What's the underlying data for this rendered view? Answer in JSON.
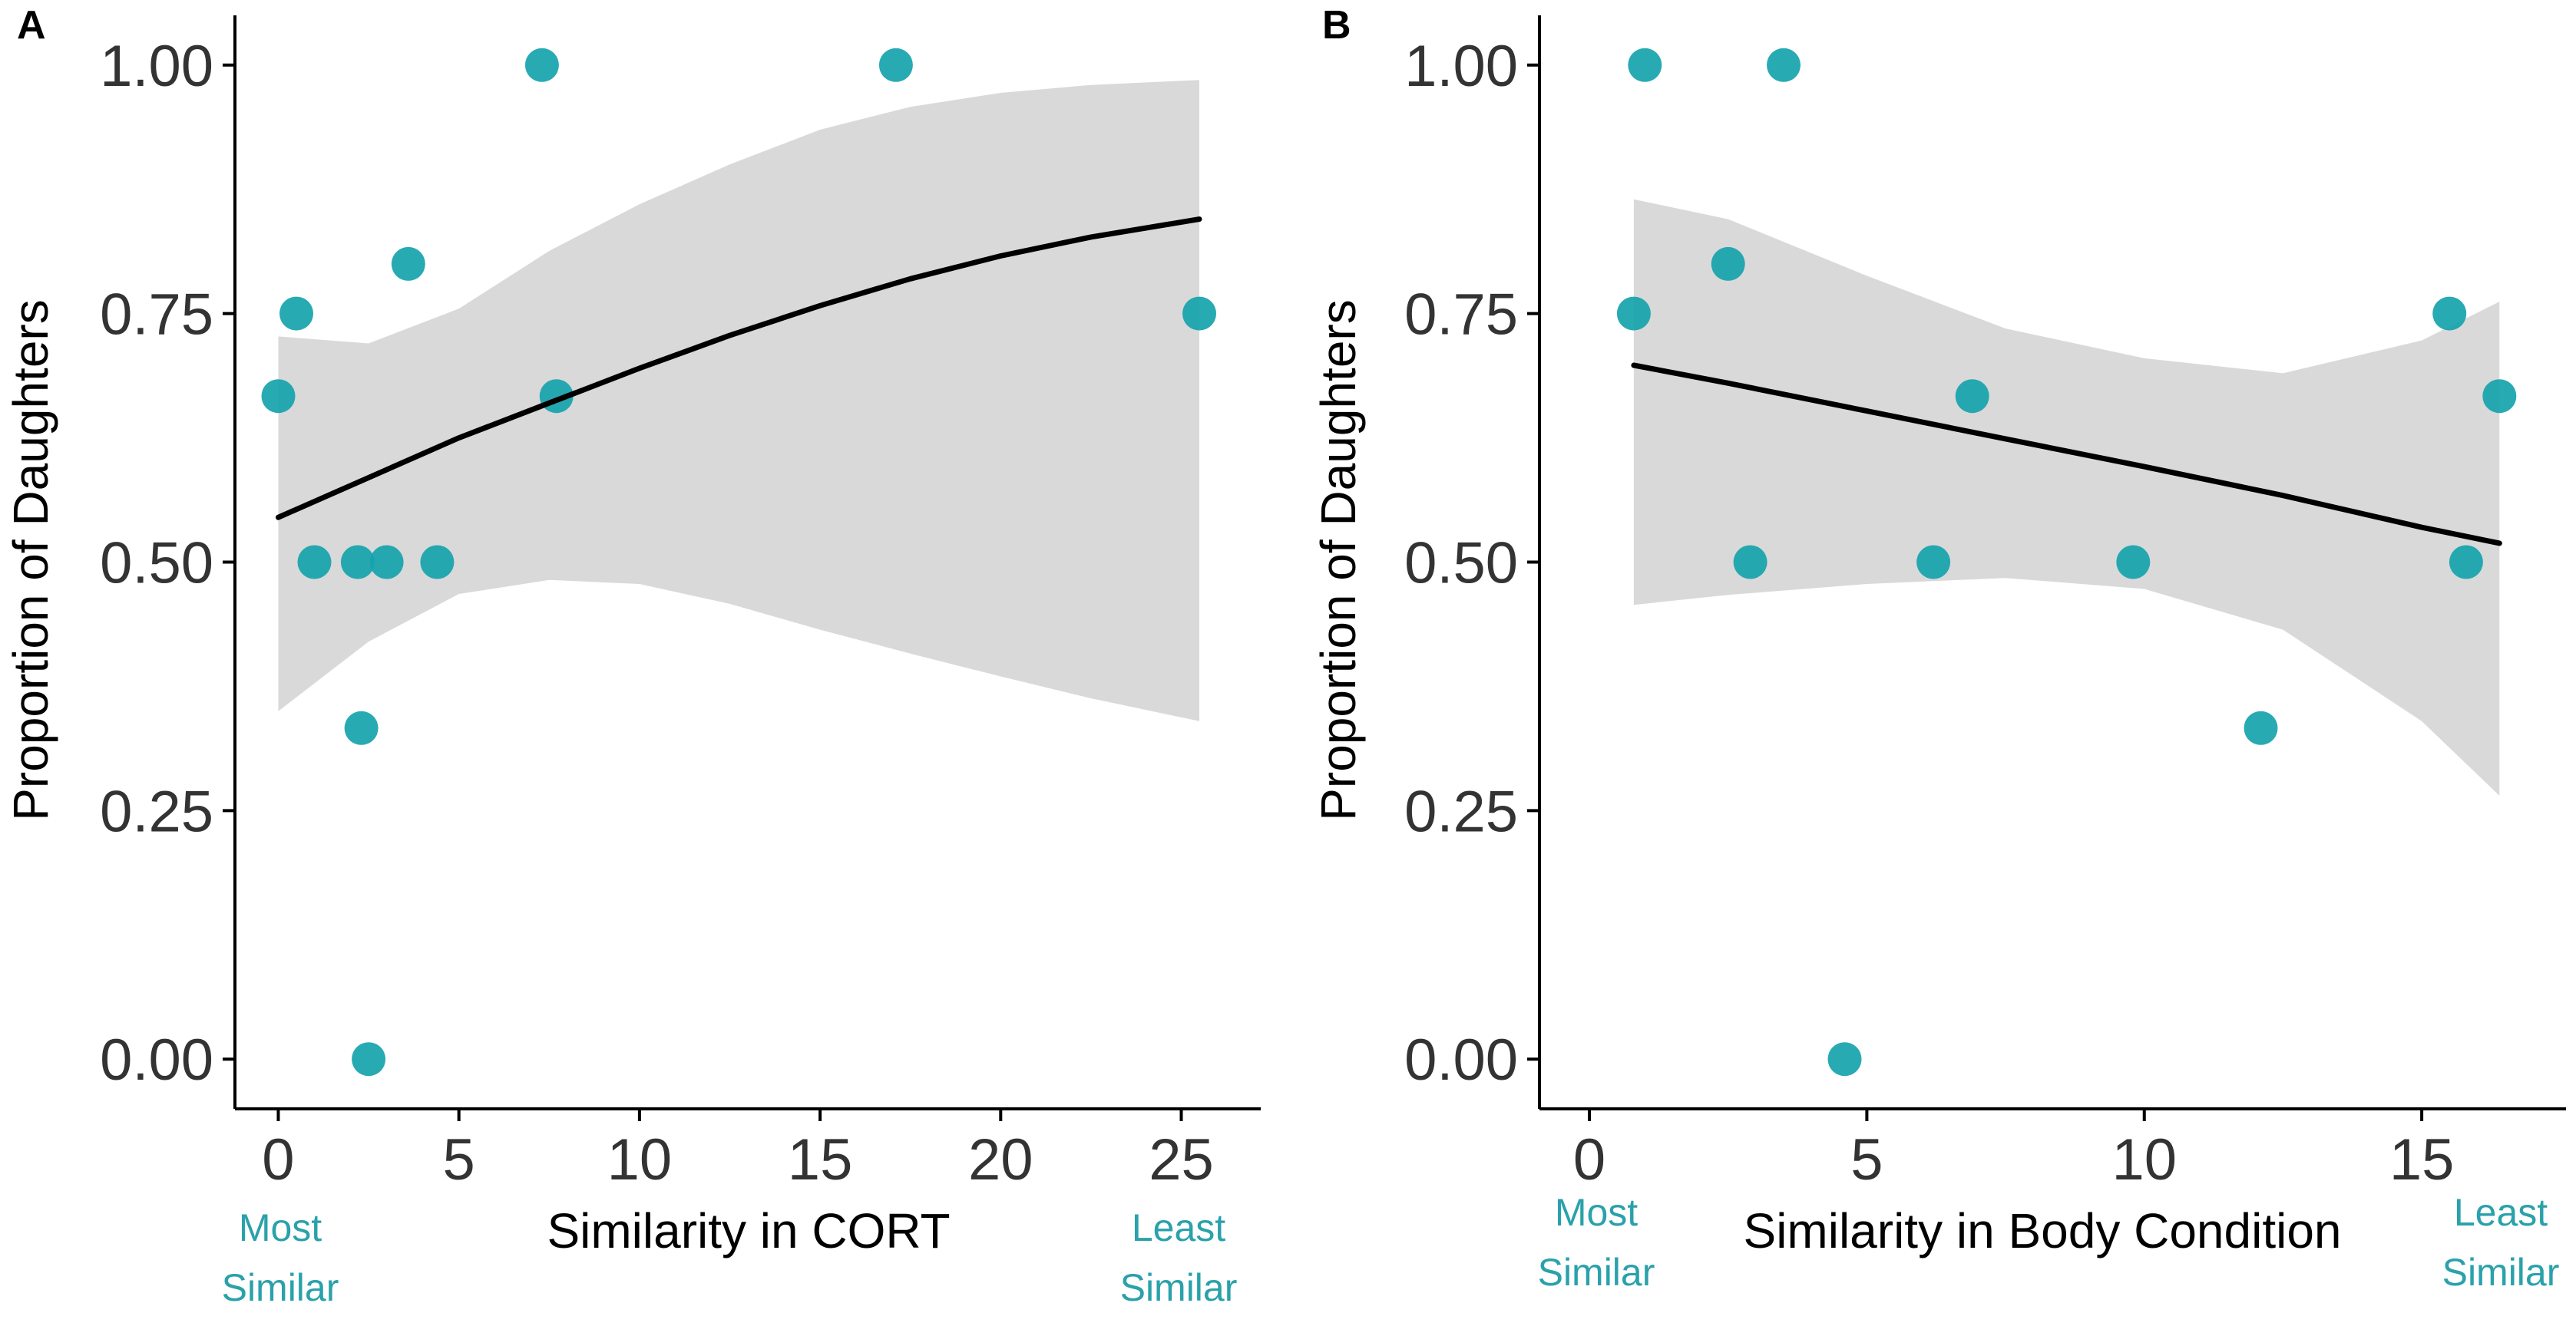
{
  "colors": {
    "point": "#16a3ad",
    "ribbon": "#d9d9d9",
    "line": "#000000",
    "annotation": "#2aa1ab",
    "axis": "#000000"
  },
  "chart_data": [
    {
      "type": "scatter",
      "panel_label": "A",
      "title": "",
      "xlabel": "Similarity in CORT",
      "ylabel": "Proportion of Daughters",
      "xlim": [
        -1.2,
        27.2
      ],
      "ylim": [
        -0.05,
        1.05
      ],
      "x_ticks": [
        0,
        5,
        10,
        15,
        20,
        25
      ],
      "x_tick_labels": [
        "0",
        "5",
        "10",
        "15",
        "20",
        "25"
      ],
      "y_ticks": [
        0,
        0.25,
        0.5,
        0.75,
        1.0
      ],
      "y_tick_labels": [
        "0.00",
        "0.25",
        "0.50",
        "0.75",
        "1.00"
      ],
      "grid": false,
      "annotation_left": {
        "line1": "Most",
        "line2": "Similar"
      },
      "annotation_right": {
        "line1": "Least",
        "line2": "Similar"
      },
      "points": [
        {
          "x": 0.0,
          "y": 0.667
        },
        {
          "x": 0.5,
          "y": 0.75
        },
        {
          "x": 1.0,
          "y": 0.5
        },
        {
          "x": 2.2,
          "y": 0.5
        },
        {
          "x": 2.3,
          "y": 0.333
        },
        {
          "x": 2.5,
          "y": 0.0
        },
        {
          "x": 3.0,
          "y": 0.5
        },
        {
          "x": 3.6,
          "y": 0.8
        },
        {
          "x": 4.4,
          "y": 0.5
        },
        {
          "x": 7.3,
          "y": 1.0
        },
        {
          "x": 7.7,
          "y": 0.667
        },
        {
          "x": 17.1,
          "y": 1.0
        },
        {
          "x": 25.5,
          "y": 0.75
        }
      ],
      "fit": {
        "x": [
          0,
          2.5,
          5,
          7.5,
          10,
          12.5,
          15,
          17.5,
          20,
          22.5,
          25.5
        ],
        "y": [
          0.545,
          0.585,
          0.625,
          0.66,
          0.695,
          0.728,
          0.758,
          0.785,
          0.808,
          0.827,
          0.845
        ],
        "lower": [
          0.35,
          0.42,
          0.468,
          0.482,
          0.478,
          0.458,
          0.432,
          0.408,
          0.385,
          0.363,
          0.34
        ],
        "upper": [
          0.727,
          0.72,
          0.755,
          0.813,
          0.86,
          0.9,
          0.935,
          0.958,
          0.972,
          0.98,
          0.985
        ]
      }
    },
    {
      "type": "scatter",
      "panel_label": "B",
      "title": "",
      "xlabel": "Similarity in Body Condition",
      "ylabel": "Proportion of Daughters",
      "xlim": [
        -0.9,
        17.6
      ],
      "ylim": [
        -0.05,
        1.05
      ],
      "x_ticks": [
        0,
        5,
        10,
        15
      ],
      "x_tick_labels": [
        "0",
        "5",
        "10",
        "15"
      ],
      "y_ticks": [
        0,
        0.25,
        0.5,
        0.75,
        1.0
      ],
      "y_tick_labels": [
        "0.00",
        "0.25",
        "0.50",
        "0.75",
        "1.00"
      ],
      "grid": false,
      "annotation_left": {
        "line1": "Most",
        "line2": "Similar"
      },
      "annotation_right": {
        "line1": "Least",
        "line2": "Similar"
      },
      "points": [
        {
          "x": 0.8,
          "y": 0.75
        },
        {
          "x": 1.0,
          "y": 1.0
        },
        {
          "x": 2.5,
          "y": 0.8
        },
        {
          "x": 2.9,
          "y": 0.5
        },
        {
          "x": 3.5,
          "y": 1.0
        },
        {
          "x": 4.6,
          "y": 0.0
        },
        {
          "x": 6.2,
          "y": 0.5
        },
        {
          "x": 6.9,
          "y": 0.667
        },
        {
          "x": 9.8,
          "y": 0.5
        },
        {
          "x": 12.1,
          "y": 0.333
        },
        {
          "x": 15.5,
          "y": 0.75
        },
        {
          "x": 15.8,
          "y": 0.5
        },
        {
          "x": 16.4,
          "y": 0.667
        }
      ],
      "fit": {
        "x": [
          0.8,
          2.5,
          5,
          7.5,
          10,
          12.5,
          15,
          16.4
        ],
        "y": [
          0.698,
          0.68,
          0.652,
          0.624,
          0.596,
          0.567,
          0.535,
          0.519
        ],
        "lower": [
          0.457,
          0.467,
          0.478,
          0.484,
          0.473,
          0.432,
          0.34,
          0.265
        ],
        "upper": [
          0.865,
          0.845,
          0.788,
          0.735,
          0.705,
          0.69,
          0.723,
          0.762
        ]
      }
    }
  ]
}
